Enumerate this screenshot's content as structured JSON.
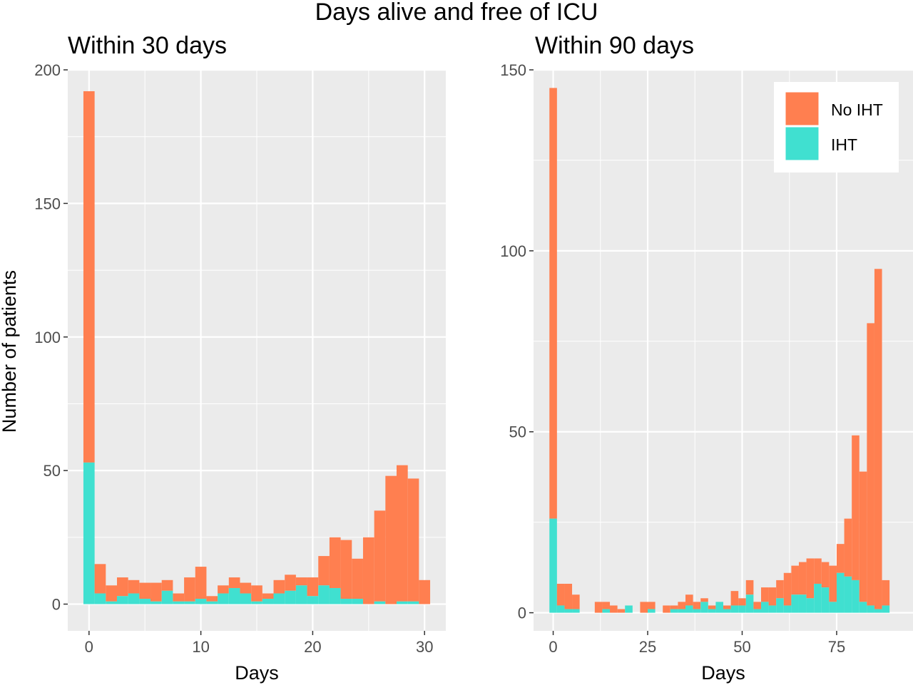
{
  "title": "Days alive and free of ICU",
  "ylabel": "Number of patients",
  "legend": {
    "items": [
      {
        "label": "No IHT",
        "color": "#FF7F50"
      },
      {
        "label": "IHT",
        "color": "#40E0D0"
      }
    ]
  },
  "chart_data": [
    {
      "type": "bar",
      "subtitle": "Within 30 days",
      "xlabel": "Days",
      "ylabel": "Number of patients",
      "x_ticks": [
        0,
        10,
        20,
        30
      ],
      "y_ticks": [
        0,
        50,
        100,
        150,
        200
      ],
      "xlim": [
        -1.9,
        31.9
      ],
      "ylim": [
        -10,
        200
      ],
      "bin_width": 1,
      "x": [
        0,
        1,
        2,
        3,
        4,
        5,
        6,
        7,
        8,
        9,
        10,
        11,
        12,
        13,
        14,
        15,
        16,
        17,
        18,
        19,
        20,
        21,
        22,
        23,
        24,
        25,
        26,
        27,
        28,
        29,
        30
      ],
      "series": [
        {
          "name": "No IHT",
          "color": "#FF7F50",
          "stacked_total": [
            192,
            15,
            7,
            10,
            9,
            8,
            8,
            9,
            4,
            10,
            14,
            3,
            7,
            10,
            8,
            7,
            4,
            9,
            11,
            10,
            10,
            18,
            25,
            24,
            17,
            25,
            35,
            48,
            52,
            47,
            9
          ]
        },
        {
          "name": "IHT",
          "color": "#40E0D0",
          "values": [
            53,
            4,
            1,
            3,
            4,
            2,
            1,
            5,
            1,
            1,
            2,
            1,
            4,
            6,
            4,
            1,
            2,
            4,
            5,
            7,
            3,
            7,
            6,
            2,
            2,
            0,
            1,
            0,
            1,
            1,
            0
          ]
        }
      ]
    },
    {
      "type": "bar",
      "subtitle": "Within 90 days",
      "xlabel": "Days",
      "ylabel": "Number of patients",
      "x_ticks": [
        0,
        25,
        50,
        75
      ],
      "y_ticks": [
        0,
        50,
        100,
        150
      ],
      "xlim": [
        -5.2,
        95.2
      ],
      "ylim": [
        -5,
        150
      ],
      "bin_width": 2,
      "x": [
        0,
        2,
        4,
        6,
        8,
        10,
        12,
        14,
        16,
        18,
        20,
        22,
        24,
        26,
        28,
        30,
        32,
        34,
        36,
        38,
        40,
        42,
        44,
        46,
        48,
        50,
        52,
        54,
        56,
        58,
        60,
        62,
        64,
        66,
        68,
        70,
        72,
        74,
        76,
        78,
        80,
        82,
        84,
        86,
        88,
        90
      ],
      "series": [
        {
          "name": "No IHT",
          "color": "#FF7F50",
          "stacked_total": [
            145,
            8,
            8,
            5,
            0,
            0,
            3,
            3,
            2,
            1,
            2,
            0,
            3,
            3,
            0,
            2,
            2,
            3,
            5,
            3,
            4,
            2,
            3,
            2,
            6,
            4,
            9,
            3,
            7,
            7,
            9,
            11,
            13,
            14,
            15,
            15,
            14,
            13,
            19,
            26,
            49,
            39,
            80,
            95,
            9,
            0
          ]
        },
        {
          "name": "IHT",
          "color": "#40E0D0",
          "values": [
            26,
            2,
            1,
            1,
            0,
            0,
            0,
            1,
            0,
            0,
            2,
            0,
            0,
            1,
            0,
            0,
            1,
            1,
            2,
            1,
            3,
            1,
            3,
            1,
            2,
            2,
            5,
            1,
            3,
            2,
            4,
            2,
            5,
            5,
            4,
            8,
            7,
            3,
            11,
            10,
            9,
            3,
            2,
            1,
            2,
            0
          ]
        }
      ]
    }
  ]
}
